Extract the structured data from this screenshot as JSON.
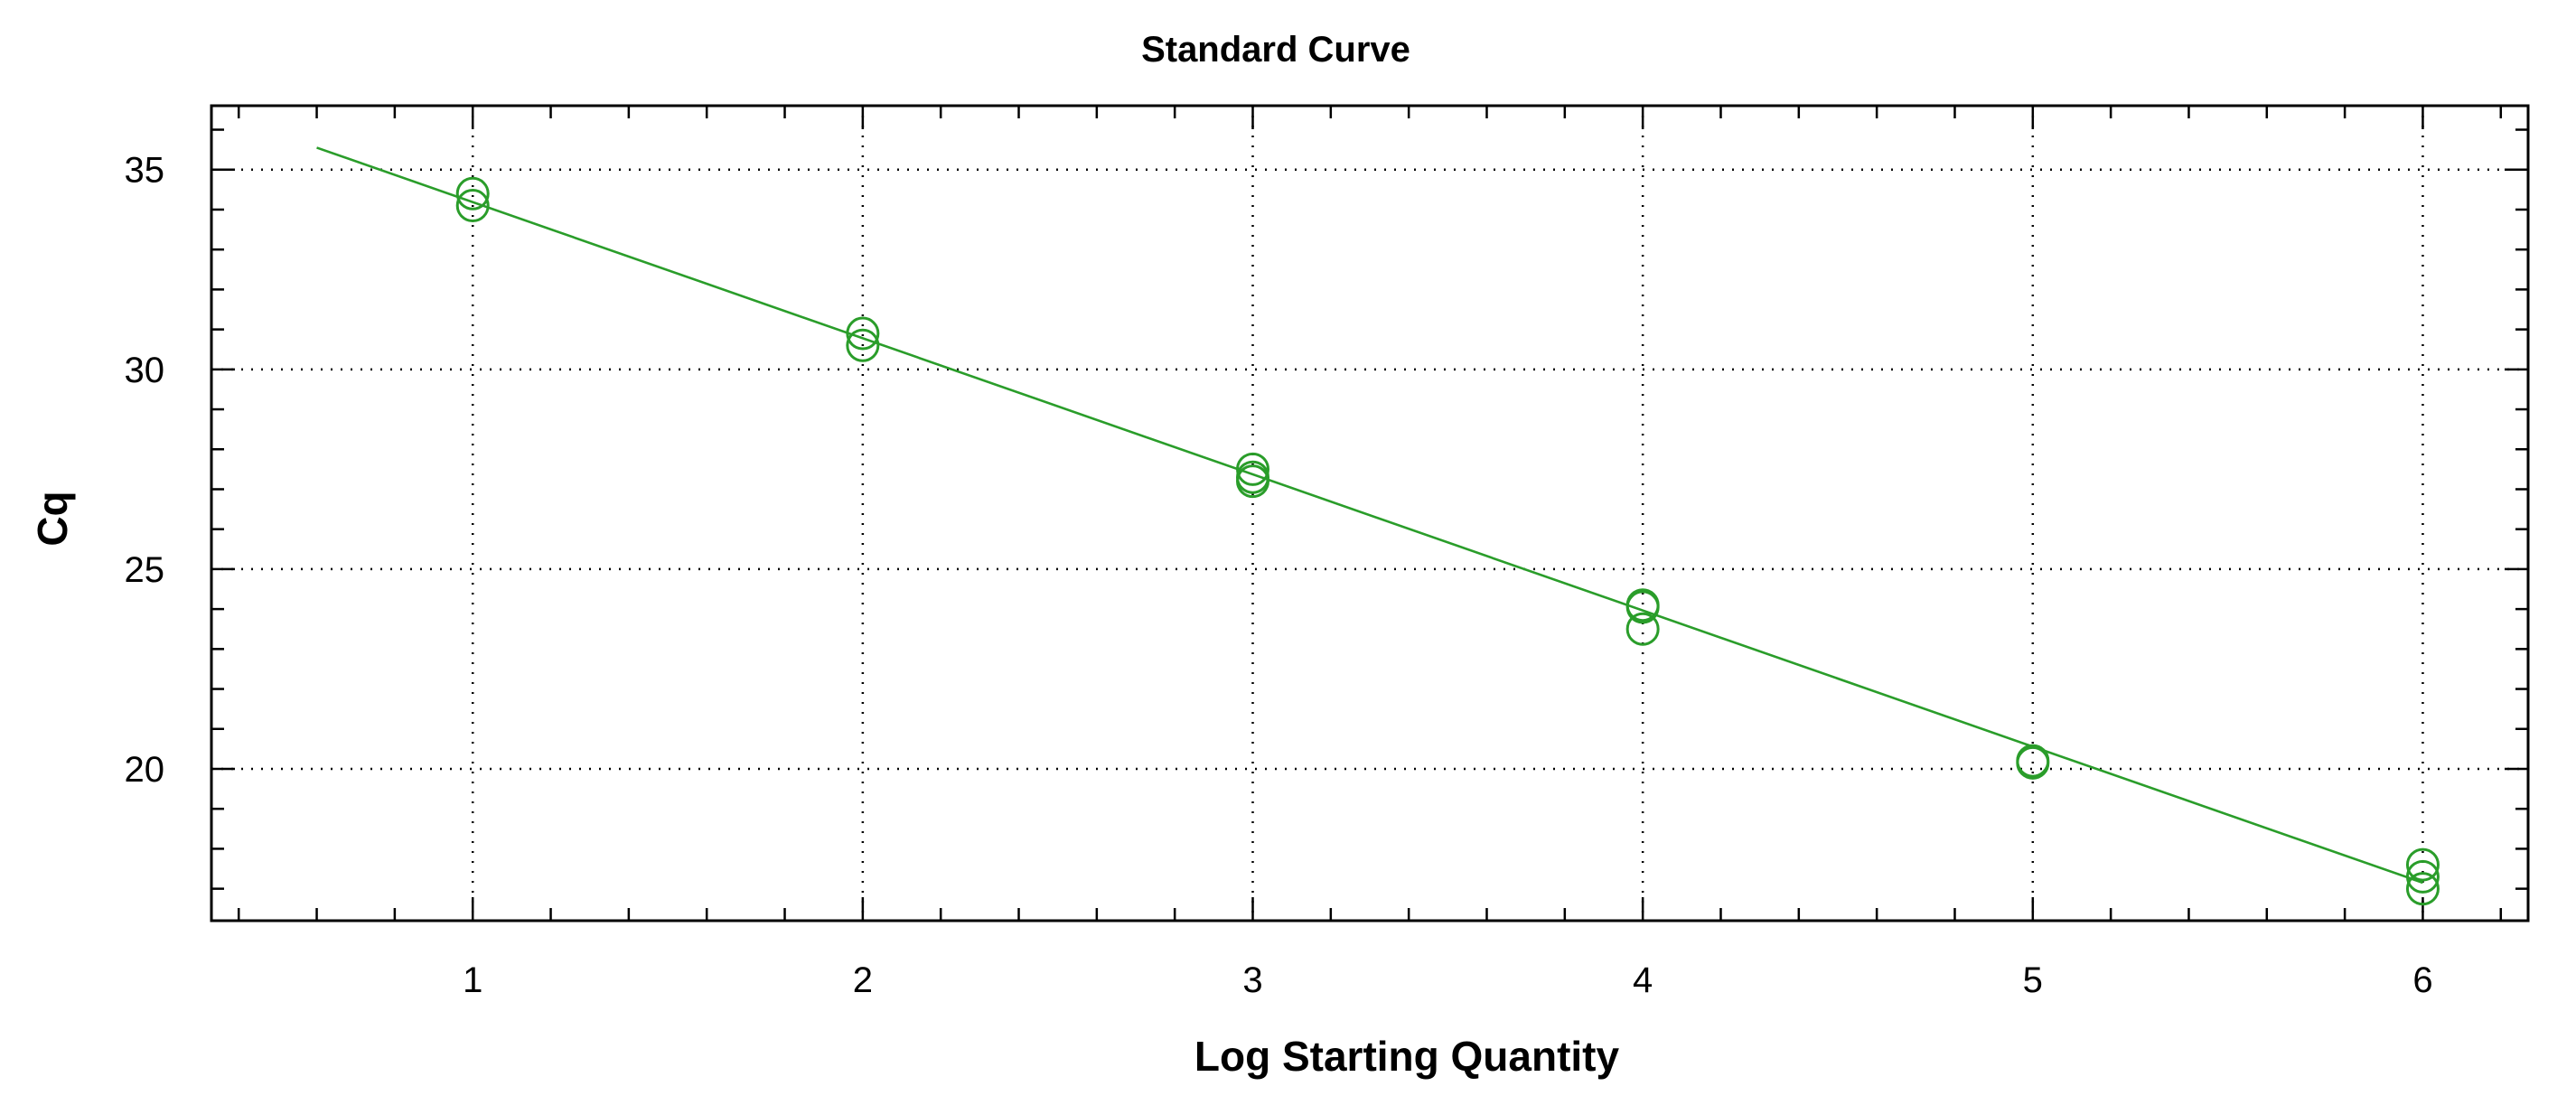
{
  "chart_data": {
    "type": "scatter",
    "title": "Standard Curve",
    "xlabel": "Log Starting Quantity",
    "ylabel": "Cq",
    "xlim": [
      0.33,
      6.27
    ],
    "ylim": [
      16.2,
      36.6
    ],
    "x_ticks": [
      1,
      2,
      3,
      4,
      5,
      6
    ],
    "x_tick_labels": [
      "1",
      "2",
      "3",
      "4",
      "5",
      "6"
    ],
    "y_ticks": [
      20,
      25,
      30,
      35
    ],
    "y_tick_labels": [
      "20",
      "25",
      "30",
      "35"
    ],
    "grid": true,
    "color": "#2a9d2a",
    "series": [
      {
        "points": [
          {
            "x": 1,
            "y": 34.4
          },
          {
            "x": 1,
            "y": 34.1
          },
          {
            "x": 2,
            "y": 30.9
          },
          {
            "x": 2,
            "y": 30.6
          },
          {
            "x": 3,
            "y": 27.5
          },
          {
            "x": 3,
            "y": 27.3
          },
          {
            "x": 3,
            "y": 27.2
          },
          {
            "x": 4,
            "y": 24.1
          },
          {
            "x": 4,
            "y": 24.05
          },
          {
            "x": 4,
            "y": 23.5
          },
          {
            "x": 5,
            "y": 20.2
          },
          {
            "x": 5,
            "y": 20.15
          },
          {
            "x": 6,
            "y": 17.6
          },
          {
            "x": 6,
            "y": 17.3
          },
          {
            "x": 6,
            "y": 17.0
          }
        ]
      }
    ],
    "fit_line": {
      "x_start": 0.6,
      "y_start": 35.55,
      "x_end": 6.0,
      "y_end": 17.15
    }
  }
}
